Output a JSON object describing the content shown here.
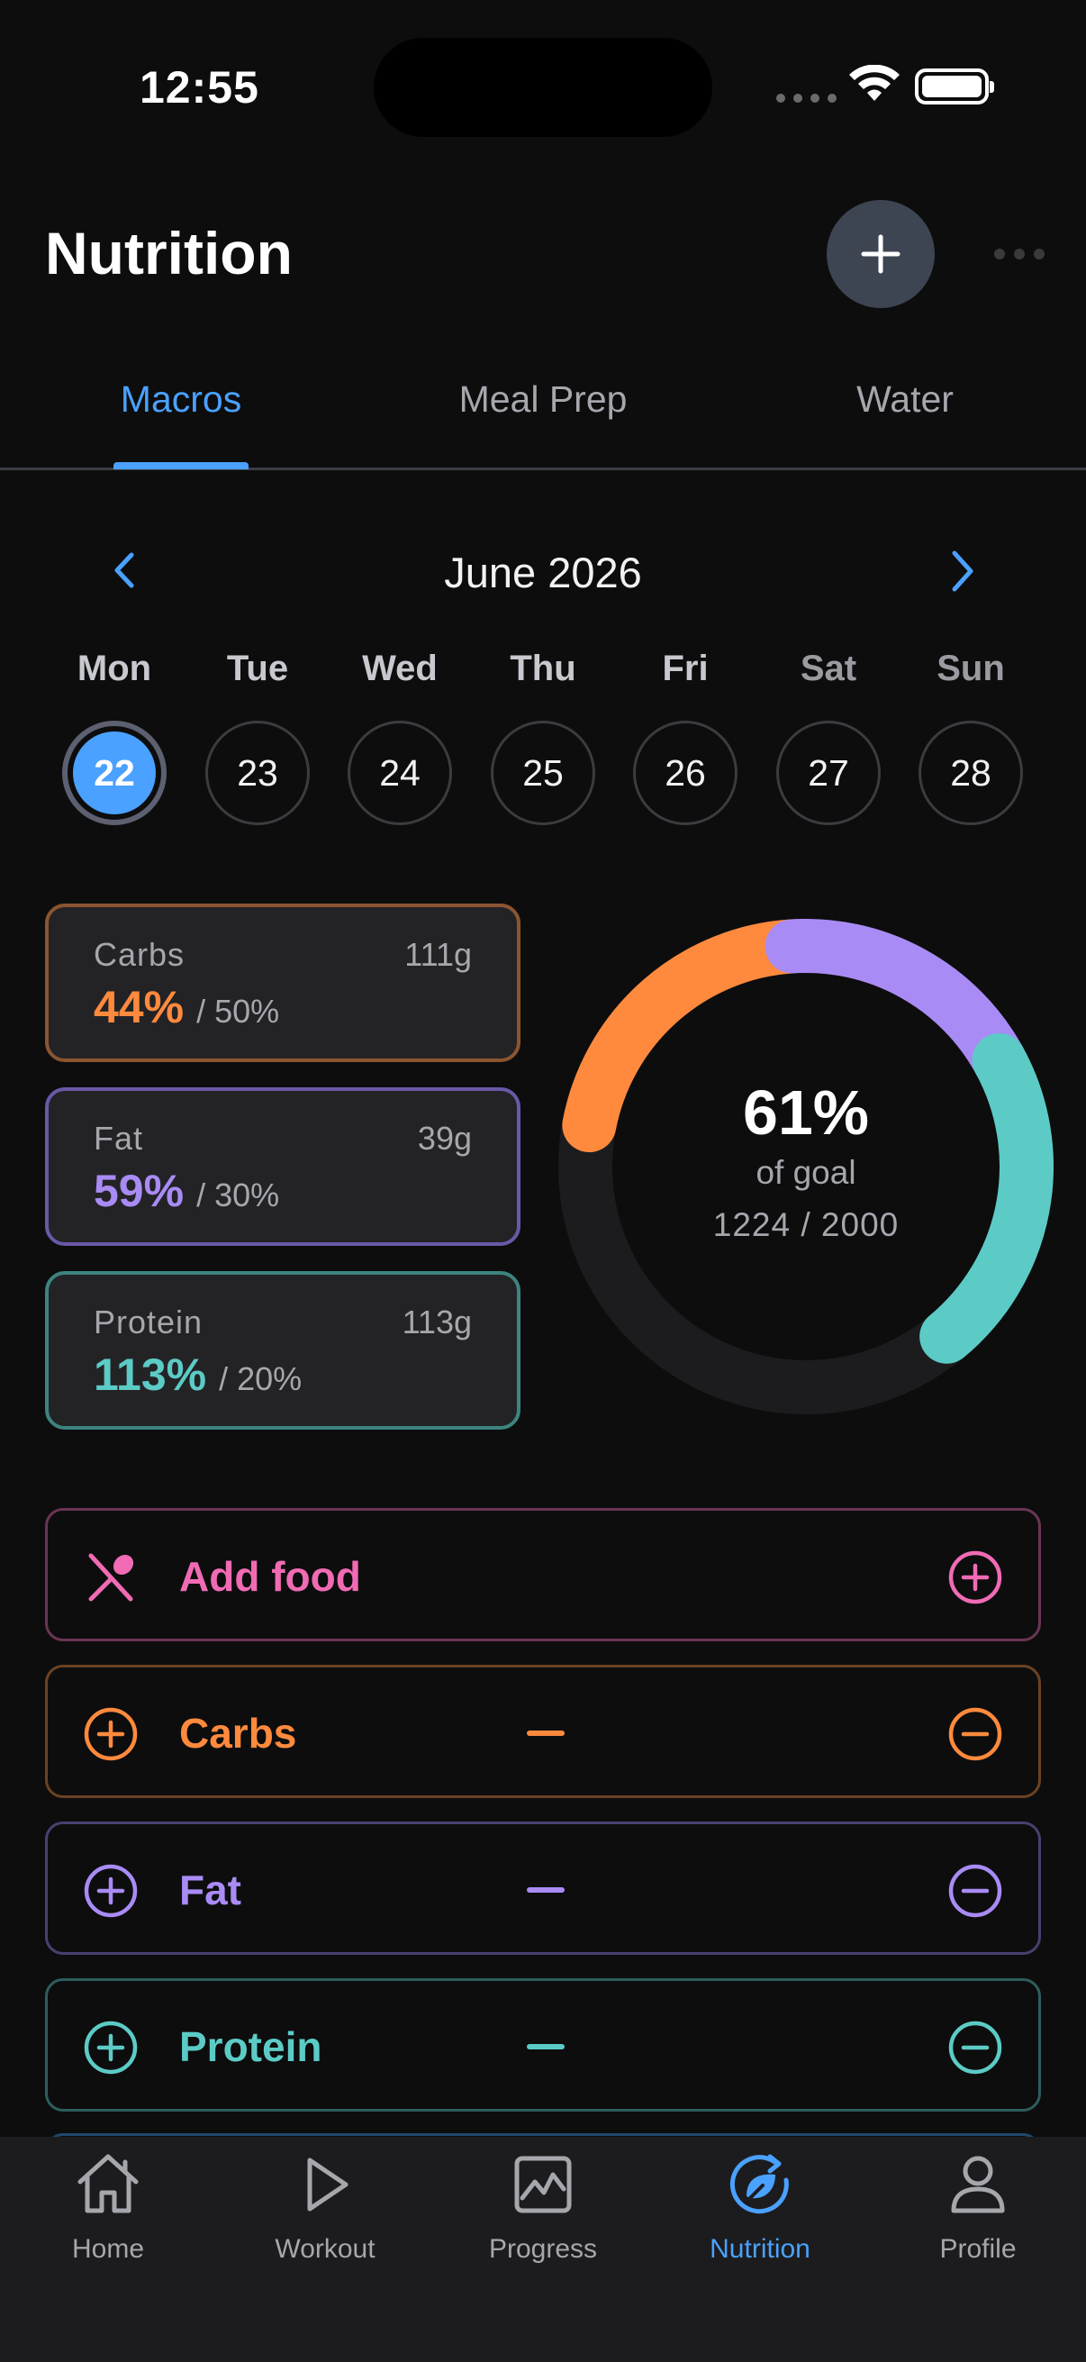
{
  "status_bar": {
    "time": "12:55"
  },
  "header": {
    "title": "Nutrition",
    "add_icon": "plus-icon",
    "more_icon": "ellipsis-icon"
  },
  "tabs": [
    {
      "label": "Macros",
      "active": true
    },
    {
      "label": "Meal Prep",
      "active": false
    },
    {
      "label": "Water",
      "active": false
    }
  ],
  "calendar": {
    "month": "June 2026",
    "days": [
      {
        "name": "Mon",
        "date": "22",
        "selected": true
      },
      {
        "name": "Tue",
        "date": "23",
        "selected": false
      },
      {
        "name": "Wed",
        "date": "24",
        "selected": false
      },
      {
        "name": "Thu",
        "date": "25",
        "selected": false
      },
      {
        "name": "Fri",
        "date": "26",
        "selected": false
      },
      {
        "name": "Sat",
        "date": "27",
        "selected": false
      },
      {
        "name": "Sun",
        "date": "28",
        "selected": false
      }
    ]
  },
  "macros": [
    {
      "name": "Carbs",
      "grams": "111g",
      "percent": "44%",
      "goal": "/ 50%",
      "color": "#ff8a3d",
      "border": "#8a5530"
    },
    {
      "name": "Fat",
      "grams": "39g",
      "percent": "59%",
      "goal": "/ 30%",
      "color": "#a98bf5",
      "border": "#6a58a8"
    },
    {
      "name": "Protein",
      "grams": "113g",
      "percent": "113%",
      "goal": "/ 20%",
      "color": "#5ccbc6",
      "border": "#3d8480"
    }
  ],
  "summary": {
    "percent": "61%",
    "label": "of goal",
    "calories": "1224 / 2000",
    "segments": [
      {
        "name": "Carbs",
        "color": "#ff8a3d",
        "fraction": 0.21
      },
      {
        "name": "Fat",
        "color": "#a98bf5",
        "fraction": 0.18
      },
      {
        "name": "Protein",
        "color": "#5ccbc6",
        "fraction": 0.22
      }
    ],
    "track_color": "#1c1c1f"
  },
  "actions": [
    {
      "id": "add-food",
      "label": "Add food",
      "color": "#f06bb4",
      "border": "#6a3553",
      "lead_icon": "fork-spoon-icon",
      "trail_icon": "plus-circle-icon"
    },
    {
      "id": "carbs",
      "label": "Carbs",
      "color": "#ff8a3d",
      "border": "#6b4222",
      "lead_icon": "plus-circle-icon",
      "trail_icon": "minus-circle-icon"
    },
    {
      "id": "fat",
      "label": "Fat",
      "color": "#a98bf5",
      "border": "#4a3f70",
      "lead_icon": "plus-circle-icon",
      "trail_icon": "minus-circle-icon"
    },
    {
      "id": "protein",
      "label": "Protein",
      "color": "#5ccbc6",
      "border": "#2d5e5c",
      "lead_icon": "plus-circle-icon",
      "trail_icon": "minus-circle-icon"
    }
  ],
  "tabbar": [
    {
      "label": "Home",
      "icon": "home-icon",
      "active": false
    },
    {
      "label": "Workout",
      "icon": "play-icon",
      "active": false
    },
    {
      "label": "Progress",
      "icon": "chart-icon",
      "active": false
    },
    {
      "label": "Nutrition",
      "icon": "nutrition-icon",
      "active": true
    },
    {
      "label": "Profile",
      "icon": "person-icon",
      "active": false
    }
  ],
  "colors": {
    "accent": "#4aa1ff",
    "inactive": "#a5a7ad"
  }
}
